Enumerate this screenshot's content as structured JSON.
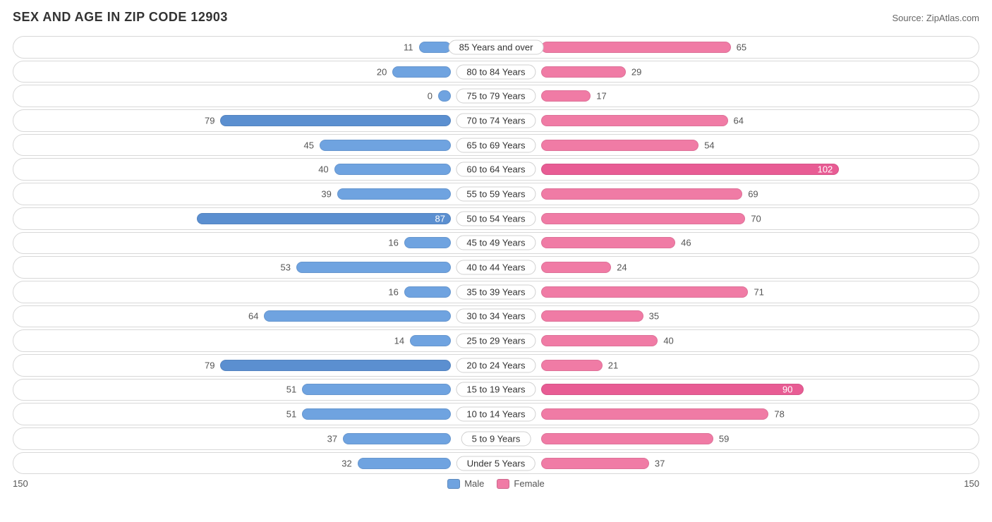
{
  "title": "SEX AND AGE IN ZIP CODE 12903",
  "source": "Source: ZipAtlas.com",
  "chart": {
    "type": "diverging-bar",
    "axis_max": 150,
    "axis_left_label": "150",
    "axis_right_label": "150",
    "male_color": "#6fa3e0",
    "male_color_dark": "#5b8fd0",
    "female_color": "#f07ba5",
    "female_color_dark": "#e85c94",
    "row_border_color": "#d8d8d8",
    "background": "#ffffff",
    "inside_threshold": 85,
    "legend": {
      "male": "Male",
      "female": "Female"
    },
    "rows": [
      {
        "label": "85 Years and over",
        "male": 11,
        "female": 65
      },
      {
        "label": "80 to 84 Years",
        "male": 20,
        "female": 29
      },
      {
        "label": "75 to 79 Years",
        "male": 0,
        "female": 17
      },
      {
        "label": "70 to 74 Years",
        "male": 79,
        "female": 64
      },
      {
        "label": "65 to 69 Years",
        "male": 45,
        "female": 54
      },
      {
        "label": "60 to 64 Years",
        "male": 40,
        "female": 102
      },
      {
        "label": "55 to 59 Years",
        "male": 39,
        "female": 69
      },
      {
        "label": "50 to 54 Years",
        "male": 87,
        "female": 70
      },
      {
        "label": "45 to 49 Years",
        "male": 16,
        "female": 46
      },
      {
        "label": "40 to 44 Years",
        "male": 53,
        "female": 24
      },
      {
        "label": "35 to 39 Years",
        "male": 16,
        "female": 71
      },
      {
        "label": "30 to 34 Years",
        "male": 64,
        "female": 35
      },
      {
        "label": "25 to 29 Years",
        "male": 14,
        "female": 40
      },
      {
        "label": "20 to 24 Years",
        "male": 79,
        "female": 21
      },
      {
        "label": "15 to 19 Years",
        "male": 51,
        "female": 90
      },
      {
        "label": "10 to 14 Years",
        "male": 51,
        "female": 78
      },
      {
        "label": "5 to 9 Years",
        "male": 37,
        "female": 59
      },
      {
        "label": "Under 5 Years",
        "male": 32,
        "female": 37
      }
    ]
  }
}
